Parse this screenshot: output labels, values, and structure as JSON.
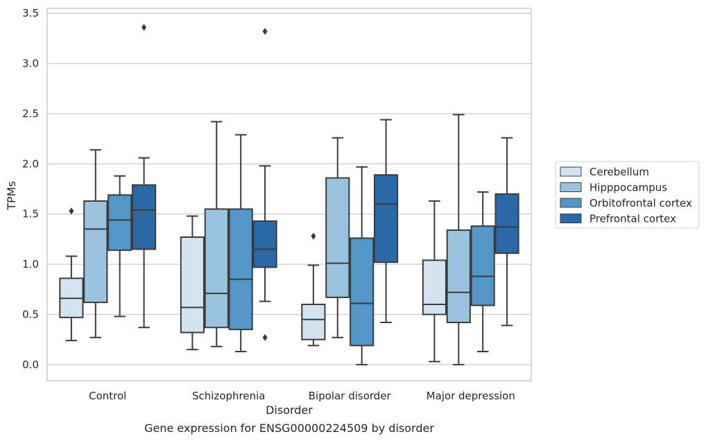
{
  "chart_data": {
    "type": "box",
    "xlabel": "Disorder",
    "ylabel": "TPMs",
    "caption": "Gene expression for ENSG00000224509 by disorder",
    "ylim": [
      -0.16,
      3.55
    ],
    "yticks": [
      "0.0",
      "0.5",
      "1.0",
      "1.5",
      "2.0",
      "2.5",
      "3.0",
      "3.5"
    ],
    "grid": "horizontal",
    "legend_position": "right",
    "categories": [
      "Control",
      "Schizophrenia",
      "Bipolar disorder",
      "Major depression"
    ],
    "series": [
      {
        "name": "Cerebellum",
        "color": "#d4e3f2",
        "boxes": [
          {
            "whislo": 0.24,
            "q1": 0.47,
            "med": 0.66,
            "q3": 0.86,
            "whishi": 1.08,
            "fliers": [
              1.53
            ]
          },
          {
            "whislo": 0.15,
            "q1": 0.32,
            "med": 0.57,
            "q3": 1.27,
            "whishi": 1.48,
            "fliers": []
          },
          {
            "whislo": 0.19,
            "q1": 0.25,
            "med": 0.45,
            "q3": 0.6,
            "whishi": 0.99,
            "fliers": [
              1.28
            ]
          },
          {
            "whislo": 0.03,
            "q1": 0.5,
            "med": 0.6,
            "q3": 1.04,
            "whishi": 1.63,
            "fliers": []
          }
        ]
      },
      {
        "name": "Hipppocampus",
        "color": "#9ac4dd",
        "boxes": [
          {
            "whislo": 0.27,
            "q1": 0.62,
            "med": 1.35,
            "q3": 1.63,
            "whishi": 2.14,
            "fliers": []
          },
          {
            "whislo": 0.18,
            "q1": 0.37,
            "med": 0.71,
            "q3": 1.55,
            "whishi": 2.42,
            "fliers": []
          },
          {
            "whislo": 0.27,
            "q1": 0.67,
            "med": 1.01,
            "q3": 1.86,
            "whishi": 2.26,
            "fliers": []
          },
          {
            "whislo": 0.0,
            "q1": 0.42,
            "med": 0.72,
            "q3": 1.34,
            "whishi": 2.49,
            "fliers": []
          }
        ]
      },
      {
        "name": "Orbitofrontal cortex",
        "color": "#5496c7",
        "boxes": [
          {
            "whislo": 0.48,
            "q1": 1.14,
            "med": 1.44,
            "q3": 1.69,
            "whishi": 1.88,
            "fliers": []
          },
          {
            "whislo": 0.13,
            "q1": 0.35,
            "med": 0.85,
            "q3": 1.55,
            "whishi": 2.29,
            "fliers": []
          },
          {
            "whislo": 0.0,
            "q1": 0.19,
            "med": 0.61,
            "q3": 1.26,
            "whishi": 1.97,
            "fliers": []
          },
          {
            "whislo": 0.13,
            "q1": 0.59,
            "med": 0.88,
            "q3": 1.38,
            "whishi": 1.72,
            "fliers": []
          }
        ]
      },
      {
        "name": "Prefrontal cortex",
        "color": "#2a68a8",
        "boxes": [
          {
            "whislo": 0.37,
            "q1": 1.15,
            "med": 1.54,
            "q3": 1.79,
            "whishi": 2.06,
            "fliers": [
              3.36
            ]
          },
          {
            "whislo": 0.63,
            "q1": 0.97,
            "med": 1.15,
            "q3": 1.43,
            "whishi": 1.98,
            "fliers": [
              3.32,
              0.27
            ]
          },
          {
            "whislo": 0.42,
            "q1": 1.02,
            "med": 1.6,
            "q3": 1.89,
            "whishi": 2.44,
            "fliers": []
          },
          {
            "whislo": 0.39,
            "q1": 1.11,
            "med": 1.37,
            "q3": 1.7,
            "whishi": 2.26,
            "fliers": []
          }
        ]
      }
    ]
  }
}
